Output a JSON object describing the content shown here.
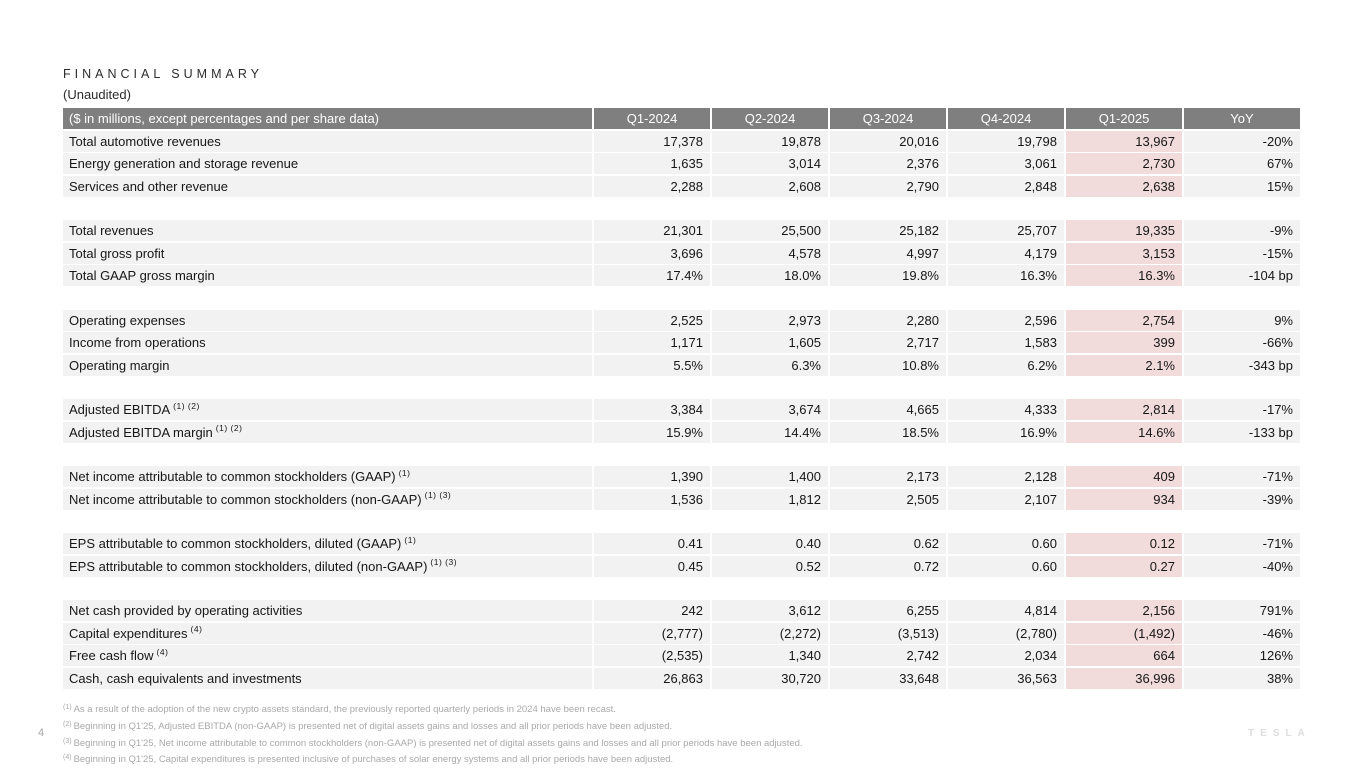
{
  "title": "FINANCIAL SUMMARY",
  "subtitle": "(Unaudited)",
  "page": {
    "number": "4",
    "brand": "TESLA"
  },
  "colors": {
    "header_bg": "#7f7f7f",
    "header_text": "#ffffff",
    "row_bg": "#f2f2f2",
    "highlight_bg": "#f2dcdb",
    "footnote_text": "#a9a9a9"
  },
  "table": {
    "header_label": "($ in millions, except percentages and per share data)",
    "columns": [
      "Q1-2024",
      "Q2-2024",
      "Q3-2024",
      "Q4-2024",
      "Q1-2025",
      "YoY"
    ],
    "highlight_column_index": 4,
    "sections": [
      {
        "rows": [
          {
            "label": "Total automotive revenues",
            "sup": "",
            "values": [
              "17,378",
              "19,878",
              "20,016",
              "19,798",
              "13,967",
              "-20%"
            ]
          },
          {
            "label": "Energy generation and storage revenue",
            "sup": "",
            "values": [
              "1,635",
              "3,014",
              "2,376",
              "3,061",
              "2,730",
              "67%"
            ]
          },
          {
            "label": "Services and other revenue",
            "sup": "",
            "values": [
              "2,288",
              "2,608",
              "2,790",
              "2,848",
              "2,638",
              "15%"
            ]
          }
        ]
      },
      {
        "rows": [
          {
            "label": "Total revenues",
            "sup": "",
            "values": [
              "21,301",
              "25,500",
              "25,182",
              "25,707",
              "19,335",
              "-9%"
            ]
          },
          {
            "label": "Total gross profit",
            "sup": "",
            "values": [
              "3,696",
              "4,578",
              "4,997",
              "4,179",
              "3,153",
              "-15%"
            ]
          },
          {
            "label": "Total GAAP gross margin",
            "sup": "",
            "values": [
              "17.4%",
              "18.0%",
              "19.8%",
              "16.3%",
              "16.3%",
              "-104 bp"
            ]
          }
        ]
      },
      {
        "rows": [
          {
            "label": "Operating expenses",
            "sup": "",
            "values": [
              "2,525",
              "2,973",
              "2,280",
              "2,596",
              "2,754",
              "9%"
            ]
          },
          {
            "label": "Income from operations",
            "sup": "",
            "values": [
              "1,171",
              "1,605",
              "2,717",
              "1,583",
              "399",
              "-66%"
            ]
          },
          {
            "label": "Operating margin",
            "sup": "",
            "values": [
              "5.5%",
              "6.3%",
              "10.8%",
              "6.2%",
              "2.1%",
              "-343 bp"
            ]
          }
        ]
      },
      {
        "rows": [
          {
            "label": "Adjusted EBITDA",
            "sup": "(1) (2)",
            "values": [
              "3,384",
              "3,674",
              "4,665",
              "4,333",
              "2,814",
              "-17%"
            ]
          },
          {
            "label": "Adjusted EBITDA margin",
            "sup": "(1) (2)",
            "values": [
              "15.9%",
              "14.4%",
              "18.5%",
              "16.9%",
              "14.6%",
              "-133 bp"
            ]
          }
        ]
      },
      {
        "rows": [
          {
            "label": "Net income attributable to common stockholders (GAAP)",
            "sup": "(1)",
            "values": [
              "1,390",
              "1,400",
              "2,173",
              "2,128",
              "409",
              "-71%"
            ]
          },
          {
            "label": "Net income attributable to common stockholders (non-GAAP)",
            "sup": "(1) (3)",
            "values": [
              "1,536",
              "1,812",
              "2,505",
              "2,107",
              "934",
              "-39%"
            ]
          }
        ]
      },
      {
        "rows": [
          {
            "label": "EPS attributable to common stockholders, diluted (GAAP)",
            "sup": "(1)",
            "values": [
              "0.41",
              "0.40",
              "0.62",
              "0.60",
              "0.12",
              "-71%"
            ]
          },
          {
            "label": "EPS attributable to common stockholders, diluted (non-GAAP)",
            "sup": "(1) (3)",
            "values": [
              "0.45",
              "0.52",
              "0.72",
              "0.60",
              "0.27",
              "-40%"
            ]
          }
        ]
      },
      {
        "rows": [
          {
            "label": "Net cash provided by operating activities",
            "sup": "",
            "values": [
              "242",
              "3,612",
              "6,255",
              "4,814",
              "2,156",
              "791%"
            ]
          },
          {
            "label": "Capital expenditures",
            "sup": "(4)",
            "values": [
              "(2,777)",
              "(2,272)",
              "(3,513)",
              "(2,780)",
              "(1,492)",
              "-46%"
            ]
          },
          {
            "label": "Free cash flow",
            "sup": "(4)",
            "values": [
              "(2,535)",
              "1,340",
              "2,742",
              "2,034",
              "664",
              "126%"
            ]
          },
          {
            "label": "Cash, cash equivalents and investments",
            "sup": "",
            "values": [
              "26,863",
              "30,720",
              "33,648",
              "36,563",
              "36,996",
              "38%"
            ]
          }
        ]
      }
    ]
  },
  "footnotes": [
    {
      "sup": "(1)",
      "text": "As a result of the adoption of the new crypto assets standard, the previously reported quarterly periods in 2024 have been recast."
    },
    {
      "sup": "(2)",
      "text": "Beginning in Q1'25, Adjusted EBITDA (non-GAAP) is presented net of digital assets gains and losses and all prior periods have been adjusted."
    },
    {
      "sup": "(3)",
      "text": "Beginning in Q1'25, Net income attributable to common stockholders (non-GAAP) is presented net of digital assets gains and losses and all prior periods have been adjusted."
    },
    {
      "sup": "(4)",
      "text": "Beginning in Q1'25, Capital expenditures is presented inclusive of purchases of solar energy systems and all prior periods have been adjusted."
    }
  ]
}
